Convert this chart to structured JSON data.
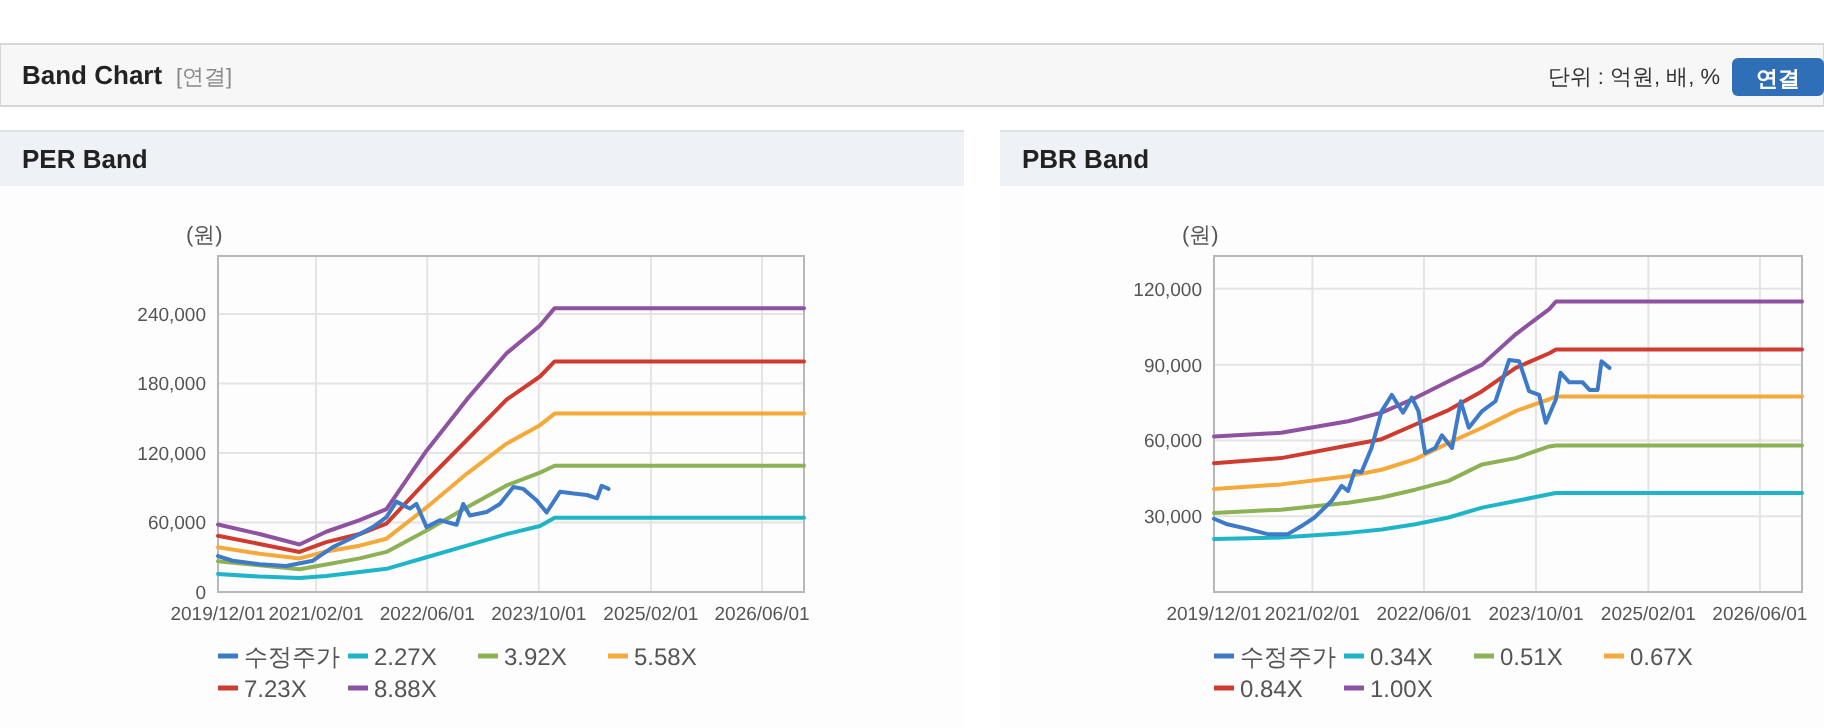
{
  "chart_data": [
    {
      "type": "other",
      "title": "Band Chart",
      "annotations": [
        "[연결]",
        "단위 : 억원, 배, %",
        "연결"
      ]
    },
    {
      "type": "line",
      "title": "PER Band",
      "ylabel": "(원)",
      "grid": true,
      "legend": "bottom",
      "xlim": [
        "2019-12-01",
        "2026-12-01"
      ],
      "ylim": [
        0,
        290000
      ],
      "xticks": [
        {
          "value": "2019-12-01",
          "label": "2019/12/01"
        },
        {
          "value": "2021-02-01",
          "label": "2021/02/01"
        },
        {
          "value": "2022-06-01",
          "label": "2022/06/01"
        },
        {
          "value": "2023-10-01",
          "label": "2023/10/01"
        },
        {
          "value": "2025-02-01",
          "label": "2025/02/01"
        },
        {
          "value": "2026-06-01",
          "label": "2026/06/01"
        }
      ],
      "yticks": [
        0,
        {
          "value": 60000,
          "label": "60,000"
        },
        {
          "value": 120000,
          "label": "120,000"
        },
        {
          "value": 180000,
          "label": "180,000"
        },
        {
          "value": 240000,
          "label": "240,000"
        }
      ],
      "series": [
        {
          "name": "수정주가",
          "color": "#3d7ac8",
          "x": [
            "2019-12-01",
            "2020-02-03",
            "2020-05-30",
            "2020-09-23",
            "2021-01-18",
            "2021-04-15",
            "2021-07-12",
            "2021-10-07",
            "2021-12-05",
            "2022-01-17",
            "2022-03-17",
            "2022-04-15",
            "2022-05-29",
            "2022-07-26",
            "2022-10-07",
            "2022-11-05",
            "2022-12-04",
            "2023-02-15",
            "2023-04-14",
            "2023-06-12",
            "2023-07-25",
            "2023-09-22",
            "2023-11-04",
            "2024-01-02",
            "2024-03-01",
            "2024-04-28",
            "2024-06-11",
            "2024-07-01",
            "2024-07-31"
          ],
          "values": [
            31000,
            27000,
            24000,
            22500,
            27000,
            38700,
            47000,
            56000,
            64600,
            78000,
            72000,
            76000,
            56000,
            62000,
            58000,
            76000,
            66000,
            69000,
            76000,
            90600,
            89000,
            79000,
            68700,
            86600,
            85000,
            83700,
            80800,
            91700,
            89000
          ]
        },
        {
          "name": "2.27X",
          "color": "#1fb5c8",
          "x": [
            "2019-12-01",
            "2020-05-30",
            "2020-11-21",
            "2021-03-17",
            "2021-08-10",
            "2021-12-05",
            "2022-05-29",
            "2022-11-20",
            "2023-05-13",
            "2023-10-06",
            "2023-12-09",
            "2026-12-01"
          ],
          "values": [
            15600,
            13300,
            12000,
            13800,
            17300,
            20000,
            30000,
            40000,
            50000,
            57000,
            64000,
            64000
          ]
        },
        {
          "name": "3.92X",
          "color": "#8db255",
          "x": [
            "2019-12-01",
            "2020-05-30",
            "2020-11-21",
            "2021-03-17",
            "2021-08-10",
            "2021-12-05",
            "2022-05-29",
            "2022-11-20",
            "2023-05-13",
            "2023-10-06",
            "2023-12-09",
            "2026-12-01"
          ],
          "values": [
            26500,
            23000,
            19600,
            23700,
            29000,
            34600,
            53000,
            73000,
            92000,
            103000,
            109000,
            109000
          ]
        },
        {
          "name": "5.58X",
          "color": "#f5a93a",
          "x": [
            "2019-12-01",
            "2020-05-30",
            "2020-11-21",
            "2021-03-17",
            "2021-08-10",
            "2021-12-05",
            "2022-05-29",
            "2022-11-20",
            "2023-05-13",
            "2023-10-06",
            "2023-12-09",
            "2026-12-01"
          ],
          "values": [
            38700,
            33000,
            29000,
            35000,
            40000,
            46000,
            73000,
            102000,
            128000,
            144000,
            154000,
            154000
          ]
        },
        {
          "name": "7.23X",
          "color": "#d03b30",
          "x": [
            "2019-12-01",
            "2020-05-30",
            "2020-11-21",
            "2021-03-17",
            "2021-08-10",
            "2021-12-05",
            "2022-05-29",
            "2022-11-20",
            "2023-05-13",
            "2023-10-06",
            "2023-12-09",
            "2026-12-01"
          ],
          "values": [
            48500,
            41500,
            34600,
            43000,
            50000,
            59000,
            96000,
            131000,
            166000,
            186000,
            199000,
            199000
          ]
        },
        {
          "name": "8.88X",
          "color": "#8e52a0",
          "x": [
            "2019-12-01",
            "2020-05-30",
            "2020-11-21",
            "2021-03-17",
            "2021-08-10",
            "2021-12-05",
            "2022-05-29",
            "2022-11-20",
            "2023-05-13",
            "2023-10-06",
            "2023-12-09",
            "2026-12-01"
          ],
          "values": [
            58300,
            50000,
            41000,
            52000,
            62000,
            71500,
            122000,
            166000,
            206000,
            230000,
            245000,
            245000
          ]
        }
      ]
    },
    {
      "type": "line",
      "title": "PBR Band",
      "ylabel": "(원)",
      "grid": true,
      "legend": "bottom",
      "xlim": [
        "2019-12-01",
        "2026-12-01"
      ],
      "ylim": [
        0,
        133000
      ],
      "xticks": [
        {
          "value": "2019-12-01",
          "label": "2019/12/01"
        },
        {
          "value": "2021-02-01",
          "label": "2021/02/01"
        },
        {
          "value": "2022-06-01",
          "label": "2022/06/01"
        },
        {
          "value": "2023-10-01",
          "label": "2023/10/01"
        },
        {
          "value": "2025-02-01",
          "label": "2025/02/01"
        },
        {
          "value": "2026-06-01",
          "label": "2026/06/01"
        }
      ],
      "yticks": [
        {
          "value": 30000,
          "label": "30,000"
        },
        {
          "value": 60000,
          "label": "60,000"
        },
        {
          "value": 90000,
          "label": "90,000"
        },
        {
          "value": 120000,
          "label": "120,000"
        }
      ],
      "series": [
        {
          "name": "수정주가",
          "color": "#3d7ac8",
          "x": [
            "2019-12-01",
            "2020-01-28",
            "2020-04-25",
            "2020-07-21",
            "2020-10-17",
            "2020-12-14",
            "2021-02-10",
            "2021-04-25",
            "2021-06-08",
            "2021-07-06",
            "2021-08-04",
            "2021-09-02",
            "2021-10-16",
            "2021-11-29",
            "2022-01-12",
            "2022-03-02",
            "2022-04-09",
            "2022-05-08",
            "2022-06-06",
            "2022-07-20",
            "2022-08-18",
            "2022-10-01",
            "2022-11-08",
            "2022-12-13",
            "2023-02-09",
            "2023-04-08",
            "2023-06-06",
            "2023-07-20",
            "2023-09-01",
            "2023-10-15",
            "2023-11-13",
            "2023-12-27",
            "2024-01-16",
            "2024-02-23",
            "2024-04-21",
            "2024-05-21",
            "2024-06-25",
            "2024-07-12",
            "2024-08-16"
          ],
          "values": [
            29000,
            26800,
            25000,
            22900,
            22900,
            26000,
            29500,
            36000,
            42000,
            40000,
            47900,
            47400,
            57000,
            71600,
            78000,
            71000,
            77000,
            71600,
            55000,
            57000,
            62000,
            57000,
            75500,
            65000,
            71600,
            75500,
            91800,
            91300,
            79500,
            78000,
            67000,
            76300,
            86800,
            83000,
            83000,
            80000,
            80000,
            91300,
            88700
          ]
        },
        {
          "name": "0.34X",
          "color": "#1fb5c8",
          "x": [
            "2019-12-01",
            "2020-09-18",
            "2021-07-06",
            "2021-11-29",
            "2022-04-24",
            "2022-09-16",
            "2023-02-09",
            "2023-07-05",
            "2023-11-28",
            "2023-12-27",
            "2026-12-01"
          ],
          "values": [
            21000,
            21600,
            23400,
            24700,
            26800,
            29500,
            33400,
            36000,
            38700,
            39200,
            39200
          ]
        },
        {
          "name": "0.51X",
          "color": "#8db255",
          "x": [
            "2019-12-01",
            "2020-09-18",
            "2021-07-06",
            "2021-11-29",
            "2022-04-24",
            "2022-09-16",
            "2023-02-09",
            "2023-07-05",
            "2023-11-28",
            "2023-12-27",
            "2026-12-01"
          ],
          "values": [
            31300,
            32600,
            35300,
            37400,
            40500,
            44000,
            50500,
            53000,
            57600,
            58000,
            58000
          ]
        },
        {
          "name": "0.67X",
          "color": "#f5a93a",
          "x": [
            "2019-12-01",
            "2020-09-18",
            "2021-07-06",
            "2021-11-29",
            "2022-04-24",
            "2022-09-16",
            "2023-02-09",
            "2023-07-05",
            "2023-11-28",
            "2023-12-27",
            "2026-12-01"
          ],
          "values": [
            40800,
            42600,
            45800,
            48400,
            52600,
            59000,
            65000,
            71600,
            76300,
            77400,
            77400
          ]
        },
        {
          "name": "0.84X",
          "color": "#d03b30",
          "x": [
            "2019-12-01",
            "2020-09-18",
            "2021-07-06",
            "2021-11-29",
            "2022-04-24",
            "2022-09-16",
            "2023-02-09",
            "2023-07-05",
            "2023-11-28",
            "2023-12-27",
            "2026-12-01"
          ],
          "values": [
            51000,
            53000,
            58000,
            60500,
            66300,
            72000,
            79500,
            88700,
            94500,
            96000,
            96000
          ]
        },
        {
          "name": "1.00X",
          "color": "#8e52a0",
          "x": [
            "2019-12-01",
            "2020-09-18",
            "2021-07-06",
            "2021-11-29",
            "2022-04-24",
            "2022-09-16",
            "2023-02-09",
            "2023-07-05",
            "2023-11-28",
            "2023-12-27",
            "2026-12-01"
          ],
          "values": [
            61600,
            63000,
            67600,
            71000,
            76800,
            83400,
            90000,
            102000,
            112000,
            115000,
            115000
          ]
        }
      ]
    }
  ]
}
